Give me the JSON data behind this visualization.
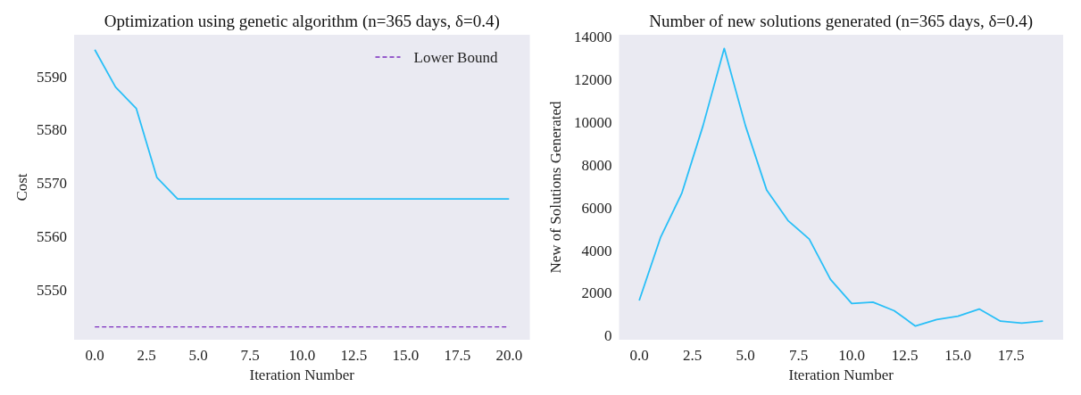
{
  "chart_data": [
    {
      "type": "line",
      "title": "Optimization using genetic algorithm (n=365 days, δ=0.4)",
      "xlabel": "Iteration Number",
      "ylabel": "Cost",
      "x": [
        0,
        1,
        2,
        3,
        4,
        5,
        6,
        7,
        8,
        9,
        10,
        11,
        12,
        13,
        14,
        15,
        16,
        17,
        18,
        19,
        20
      ],
      "series": [
        {
          "color": "#29bff7",
          "values": [
            5595,
            5588,
            5584,
            5571,
            5567,
            5567,
            5567,
            5567,
            5567,
            5567,
            5567,
            5567,
            5567,
            5567,
            5567,
            5567,
            5567,
            5567,
            5567,
            5567,
            5567
          ]
        }
      ],
      "ref_lines": [
        {
          "axis": "y",
          "value": 5543,
          "label": "Lower Bound",
          "color": "#7b2cbf",
          "line_style": "dashed"
        }
      ],
      "xlim": [
        -1,
        21
      ],
      "xticks": [
        {
          "value": 0,
          "label": "0.0"
        },
        {
          "value": 2.5,
          "label": "2.5"
        },
        {
          "value": 5,
          "label": "5.0"
        },
        {
          "value": 7.5,
          "label": "7.5"
        },
        {
          "value": 10,
          "label": "10.0"
        },
        {
          "value": 12.5,
          "label": "12.5"
        },
        {
          "value": 15,
          "label": "15.0"
        },
        {
          "value": 17.5,
          "label": "17.5"
        },
        {
          "value": 20,
          "label": "20.0"
        }
      ],
      "ylim": [
        5540.6,
        5597.8
      ],
      "yticks": [
        5550,
        5560,
        5570,
        5580,
        5590
      ],
      "grid": false,
      "legend": "top right"
    },
    {
      "type": "line",
      "title": "Number of new solutions generated (n=365 days, δ=0.4)",
      "xlabel": "Iteration Number",
      "ylabel": "New of Solutions Generated",
      "x": [
        0,
        1,
        2,
        3,
        4,
        5,
        6,
        7,
        8,
        9,
        10,
        11,
        12,
        13,
        14,
        15,
        16,
        17,
        18,
        19
      ],
      "series": [
        {
          "color": "#29bff7",
          "values": [
            1640,
            4590,
            6660,
            9830,
            13460,
            9830,
            6810,
            5390,
            4520,
            2630,
            1500,
            1560,
            1160,
            440,
            750,
            900,
            1240,
            670,
            580,
            670
          ]
        }
      ],
      "xlim": [
        -0.95,
        19.95
      ],
      "xticks": [
        {
          "value": 0,
          "label": "0.0"
        },
        {
          "value": 2.5,
          "label": "2.5"
        },
        {
          "value": 5,
          "label": "5.0"
        },
        {
          "value": 7.5,
          "label": "7.5"
        },
        {
          "value": 10,
          "label": "10.0"
        },
        {
          "value": 12.5,
          "label": "12.5"
        },
        {
          "value": 15,
          "label": "15.0"
        },
        {
          "value": 17.5,
          "label": "17.5"
        }
      ],
      "ylim": [
        -200,
        14100
      ],
      "yticks": [
        0,
        2000,
        4000,
        6000,
        8000,
        10000,
        12000,
        14000
      ],
      "grid": false
    }
  ]
}
